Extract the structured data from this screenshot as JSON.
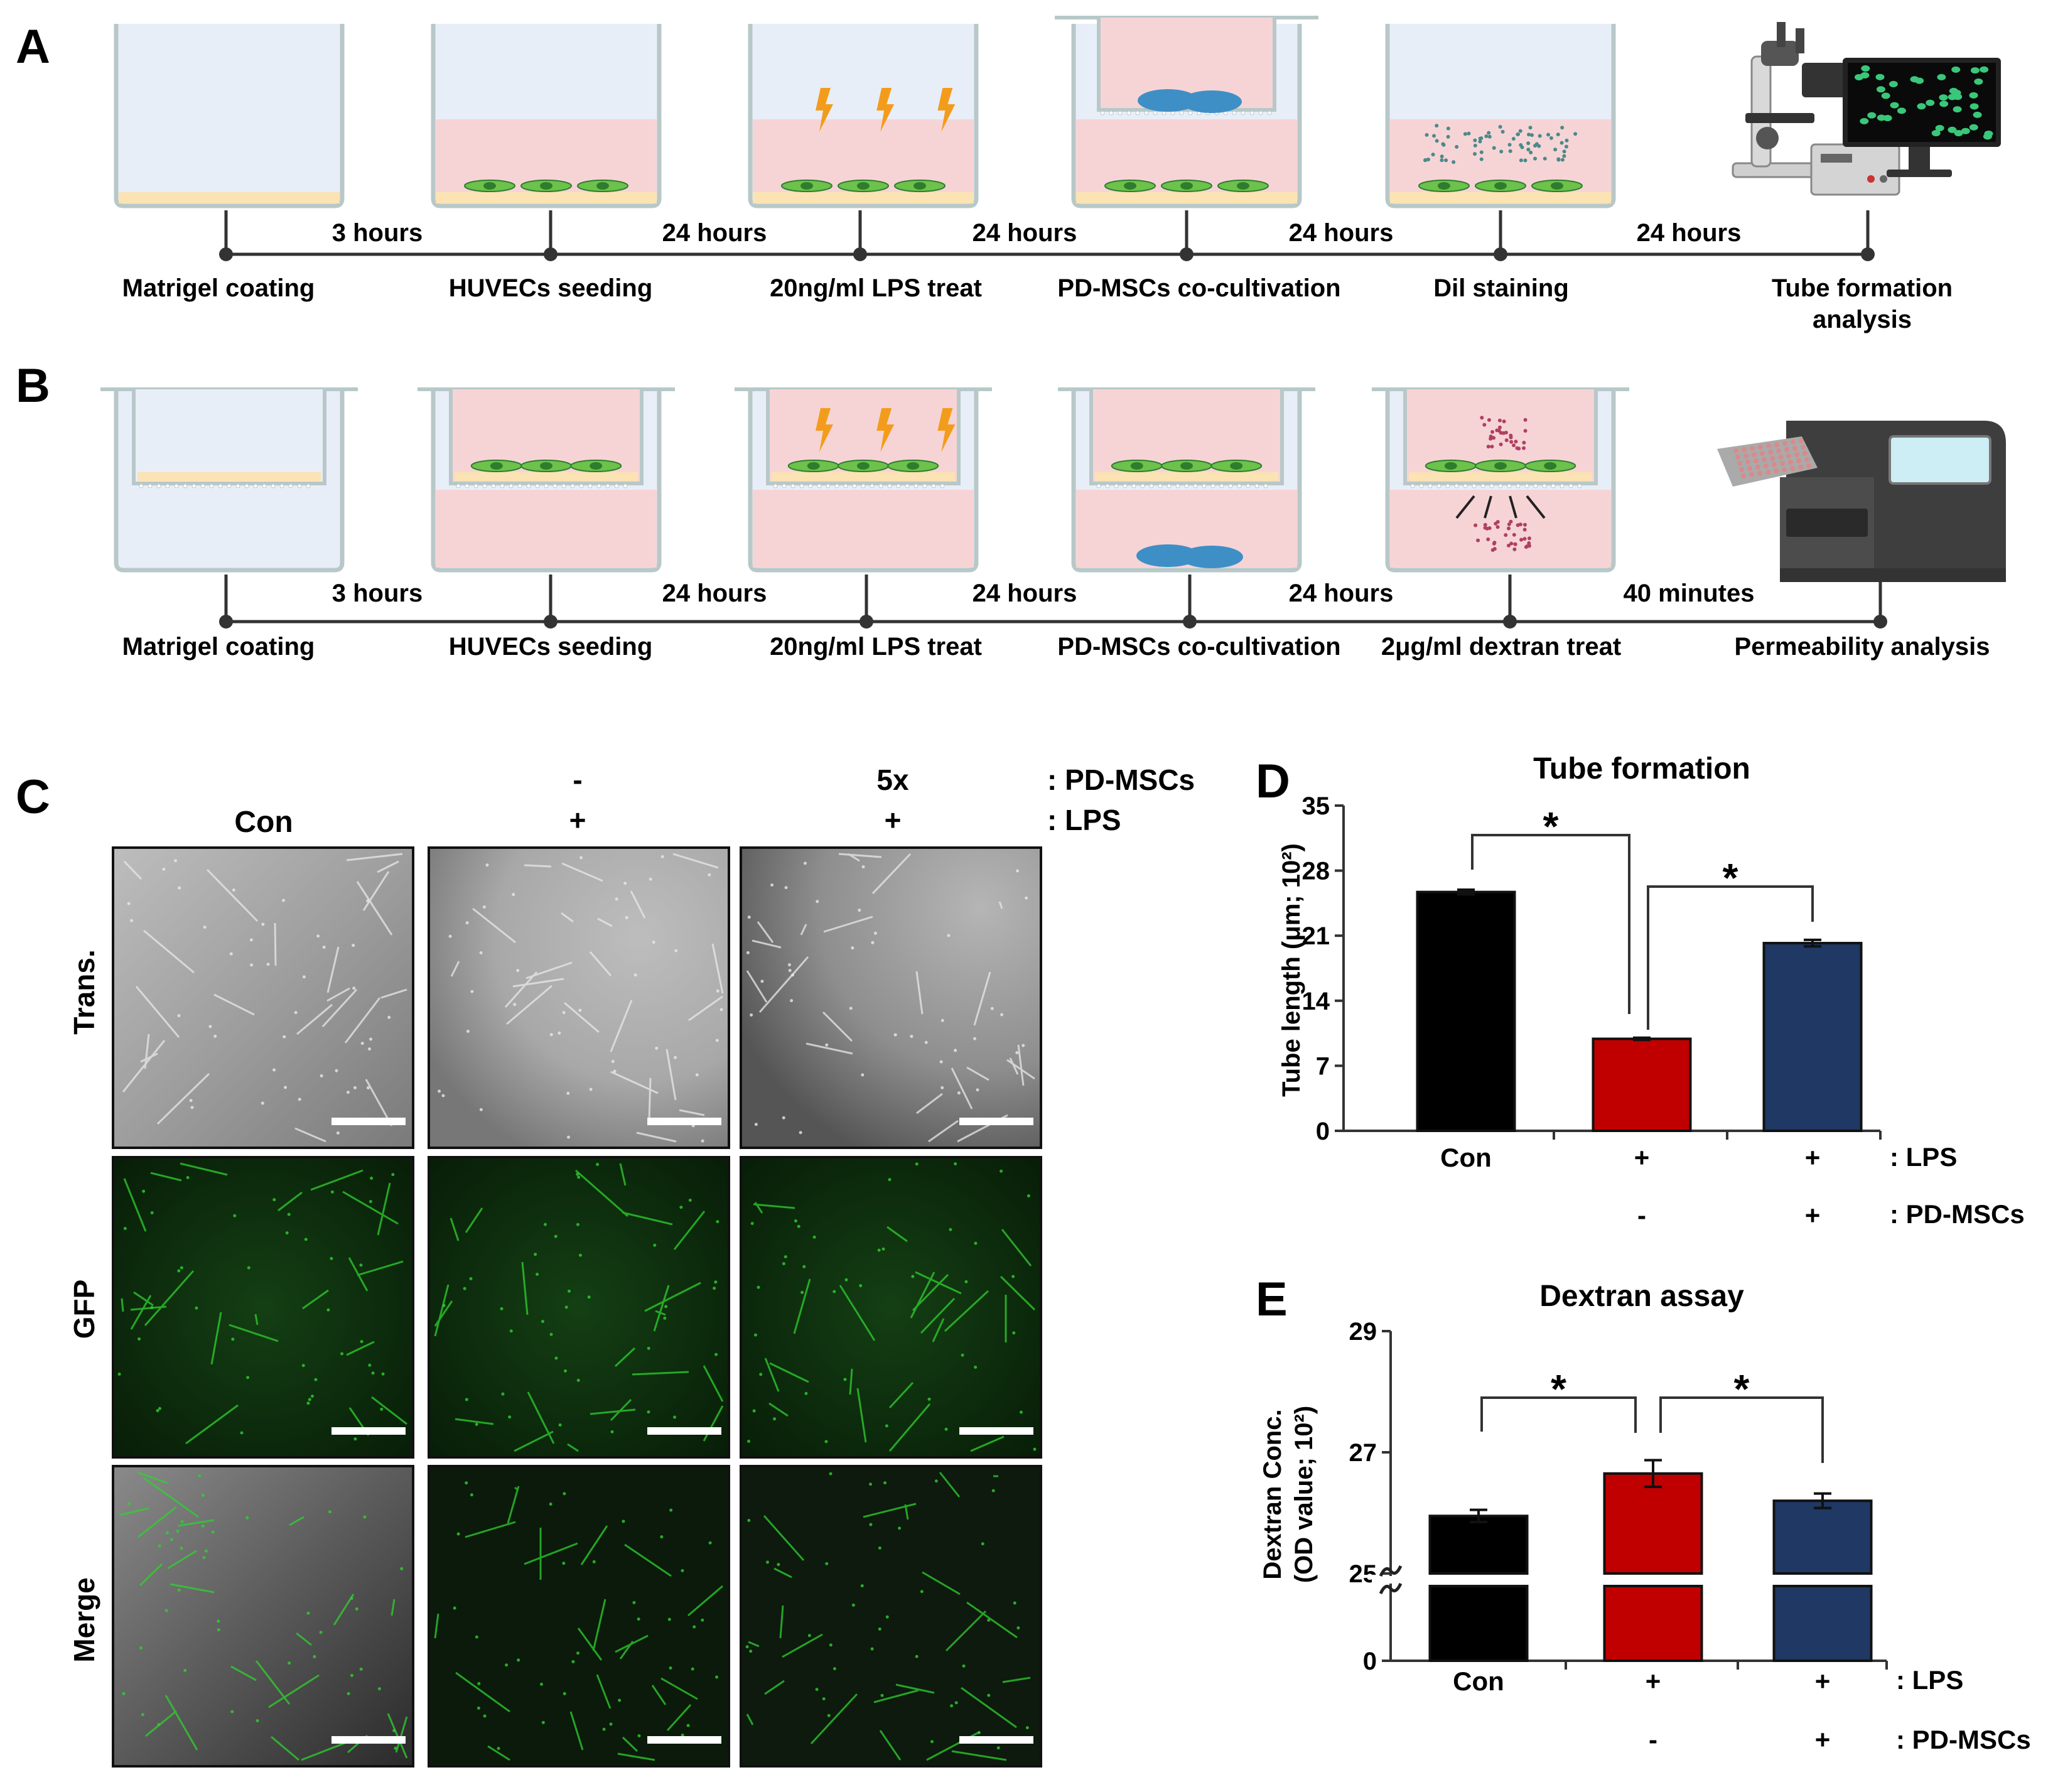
{
  "panelA": {
    "letter": "A",
    "intervals": [
      "3 hours",
      "24 hours",
      "24 hours",
      "24 hours",
      "24 hours"
    ],
    "steps": [
      "Matrigel coating",
      "HUVECs seeding",
      "20ng/ml LPS treat",
      "PD-MSCs co-cultivation",
      "Dil staining"
    ],
    "last_step_line1": "Tube formation",
    "last_step_line2": "analysis"
  },
  "panelB": {
    "letter": "B",
    "intervals": [
      "3 hours",
      "24 hours",
      "24 hours",
      "24 hours",
      "40 minutes"
    ],
    "steps": [
      "Matrigel coating",
      "HUVECs seeding",
      "20ng/ml LPS treat",
      "PD-MSCs co-cultivation",
      "2μg/ml dextran treat",
      "Permeability analysis"
    ]
  },
  "panelC": {
    "letter": "C",
    "col_con": "Con",
    "pdmsc_marks": [
      "-",
      "5x"
    ],
    "lps_marks": [
      "+",
      "+"
    ],
    "row_label_pdmsc": ": PD-MSCs",
    "row_label_lps": ": LPS",
    "rows": [
      "Trans.",
      "GFP",
      "Merge"
    ]
  },
  "panelD": {
    "letter": "D",
    "chart_data": {
      "type": "bar",
      "title": "Tube formation",
      "ylabel": "Tube length (μm; 10²)",
      "ylim": [
        0,
        35
      ],
      "yticks": [
        "0",
        "7",
        "14",
        "21",
        "28",
        "35"
      ],
      "categories": [
        "Con",
        "LPS",
        "LPS + PD-MSCs"
      ],
      "values": [
        25.7,
        9.9,
        20.2
      ],
      "errors": [
        0.25,
        0.12,
        0.35
      ],
      "colors": [
        "#000000",
        "#c00000",
        "#1f3864"
      ],
      "x_row1": [
        "Con",
        "+",
        "+"
      ],
      "x_row2": [
        "",
        "-",
        "+"
      ],
      "row1_label": ": LPS",
      "row2_label": ": PD-MSCs",
      "sig": [
        "*",
        "*"
      ]
    }
  },
  "panelE": {
    "letter": "E",
    "chart_data": {
      "type": "bar",
      "title": "Dextran assay",
      "ylabel_line1": "Dextran Conc.",
      "ylabel_line2": "(OD value; 10²)",
      "ylim": [
        25,
        29
      ],
      "axis_break": true,
      "yticks": [
        "0",
        "25",
        "27",
        "29"
      ],
      "categories": [
        "Con",
        "LPS",
        "LPS + PD-MSCs"
      ],
      "values": [
        25.95,
        26.65,
        26.2
      ],
      "errors": [
        0.1,
        0.22,
        0.12
      ],
      "colors": [
        "#000000",
        "#c00000",
        "#1f3864"
      ],
      "x_row1": [
        "Con",
        "+",
        "+"
      ],
      "x_row2": [
        "",
        "-",
        "+"
      ],
      "row1_label": ": LPS",
      "row2_label": ": PD-MSCs",
      "sig": [
        "*",
        "*"
      ]
    }
  }
}
